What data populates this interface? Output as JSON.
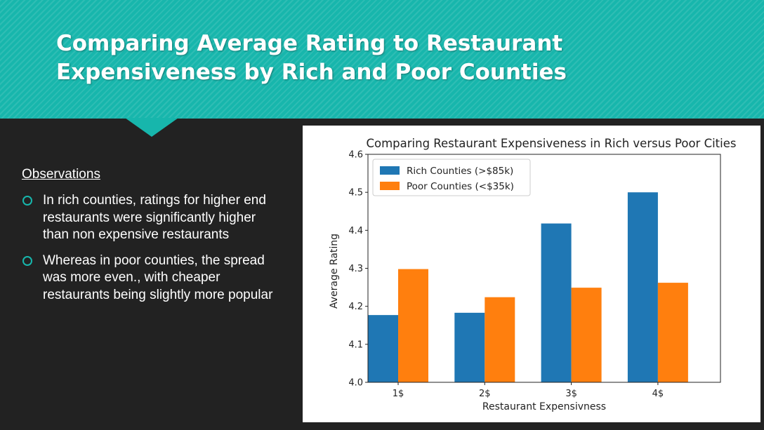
{
  "slide": {
    "title": "Comparing Average Rating to Restaurant Expensiveness by Rich and Poor Counties",
    "observations_heading": "Observations",
    "bullets": [
      "In rich counties, ratings for higher end restaurants were significantly higher than non expensive restaurants",
      "Whereas in poor counties, the spread was more even., with cheaper restaurants being slightly more popular"
    ],
    "colors": {
      "header": "#17b6ac",
      "background": "#222222",
      "bullet_icon": "#17b6ac"
    }
  },
  "chart_data": {
    "type": "bar",
    "title": "Comparing Restaurant Expensiveness in Rich versus Poor Cities",
    "xlabel": "Restaurant Expensivness",
    "ylabel": "Average Rating",
    "categories": [
      "1$",
      "2$",
      "3$",
      "4$"
    ],
    "series": [
      {
        "name": "Rich Counties (>$85k)",
        "color": "#1f77b4",
        "values": [
          4.177,
          4.183,
          4.418,
          4.5
        ]
      },
      {
        "name": "Poor Counties (<$35k)",
        "color": "#ff7f0e",
        "values": [
          4.298,
          4.224,
          4.249,
          4.262
        ]
      }
    ],
    "ylim": [
      4.0,
      4.6
    ],
    "yticks": [
      "4.0",
      "4.1",
      "4.2",
      "4.3",
      "4.4",
      "4.5",
      "4.6"
    ],
    "grid": false,
    "legend_position": "top-left"
  }
}
